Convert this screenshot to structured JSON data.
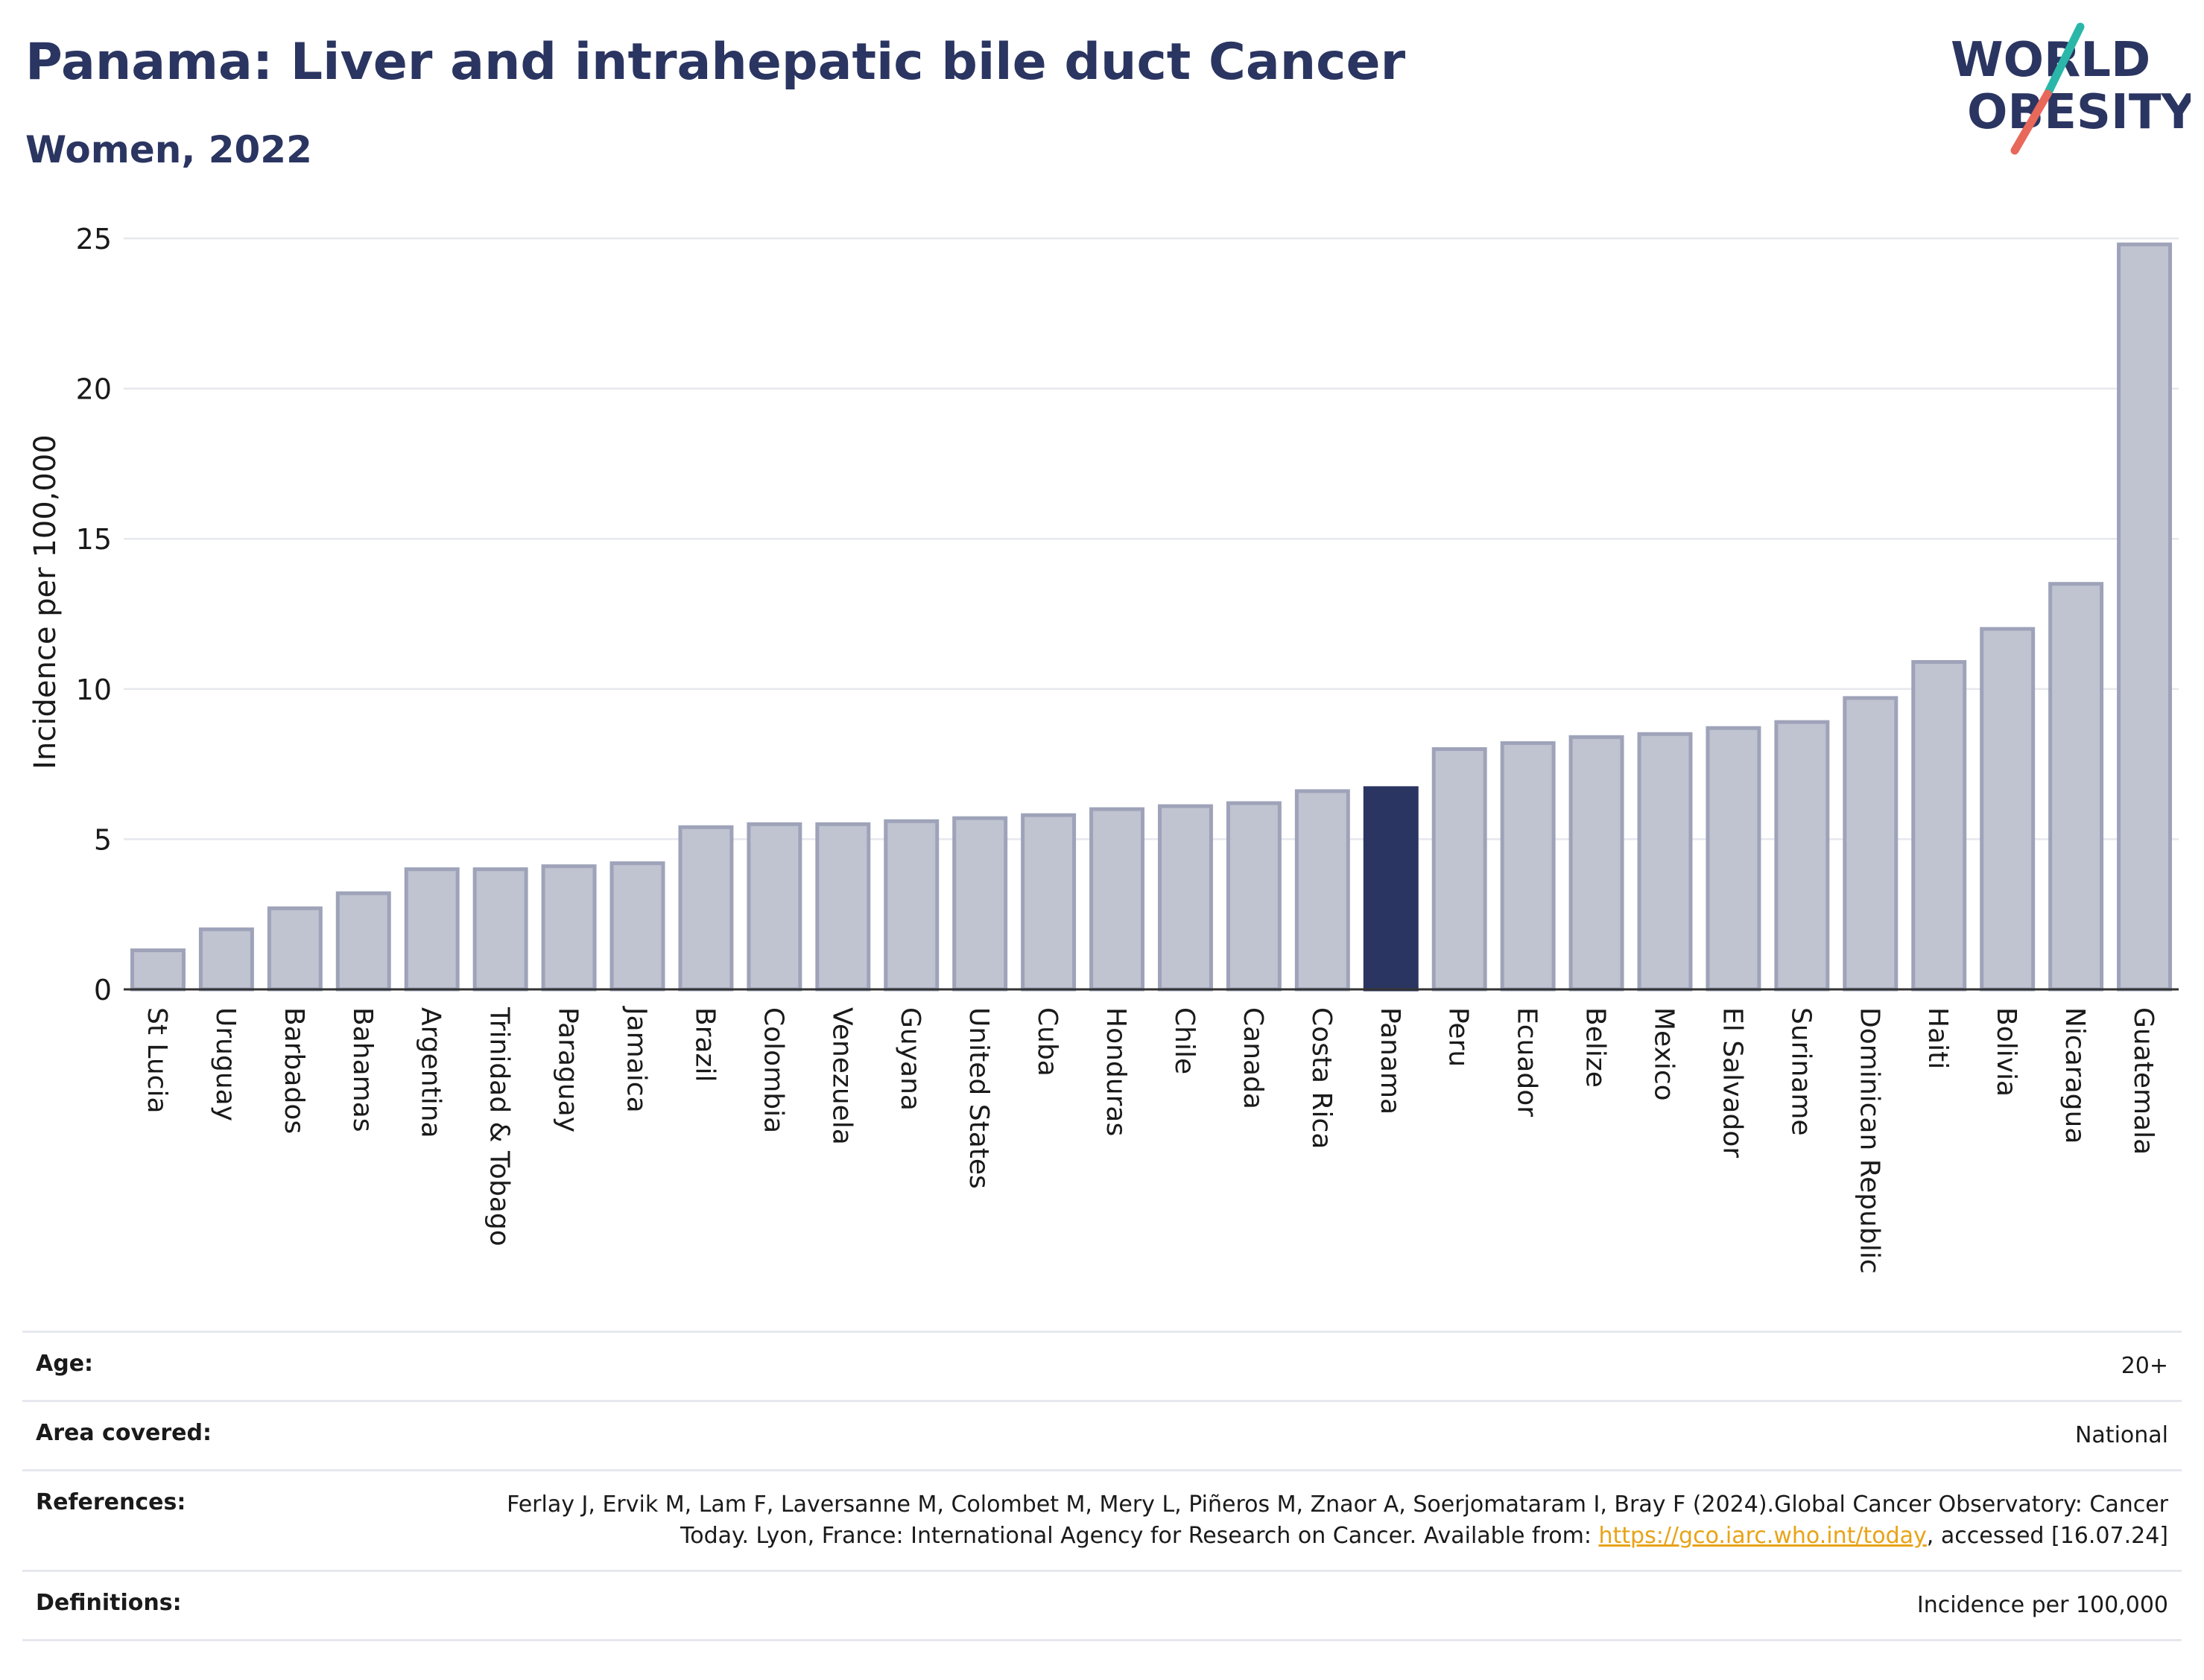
{
  "header": {
    "title": "Panama: Liver and intrahepatic bile duct Cancer",
    "subtitle": "Women, 2022"
  },
  "logo": {
    "line1": "WORLD",
    "line2": "OBESITY",
    "colors": {
      "text": "#2b3561",
      "slash_top": "#2ab7a9",
      "slash_bottom": "#e8685a"
    }
  },
  "colors": {
    "bar": "#c0c3d0",
    "bar_border": "#9ea3b9",
    "highlight": "#2b3561",
    "grid": "#e6e8ee",
    "axis": "#333333"
  },
  "chart_data": {
    "type": "bar",
    "title": "Panama: Liver and intrahepatic bile duct Cancer",
    "subtitle": "Women, 2022",
    "xlabel": "",
    "ylabel": "Incidence per 100,000",
    "ylim": [
      0,
      25
    ],
    "yticks": [
      0,
      5,
      10,
      15,
      20,
      25
    ],
    "grid": true,
    "highlight_category": "Panama",
    "categories": [
      "St Lucia",
      "Uruguay",
      "Barbados",
      "Bahamas",
      "Argentina",
      "Trinidad & Tobago",
      "Paraguay",
      "Jamaica",
      "Brazil",
      "Colombia",
      "Venezuela",
      "Guyana",
      "United States",
      "Cuba",
      "Honduras",
      "Chile",
      "Canada",
      "Costa Rica",
      "Panama",
      "Peru",
      "Ecuador",
      "Belize",
      "Mexico",
      "El Salvador",
      "Suriname",
      "Dominican Republic",
      "Haiti",
      "Bolivia",
      "Nicaragua",
      "Guatemala"
    ],
    "values": [
      1.3,
      2.0,
      2.7,
      3.2,
      4.0,
      4.0,
      4.1,
      4.2,
      5.4,
      5.5,
      5.5,
      5.6,
      5.7,
      5.8,
      6.0,
      6.1,
      6.2,
      6.6,
      6.7,
      8.0,
      8.2,
      8.4,
      8.5,
      8.7,
      8.9,
      9.7,
      10.9,
      12.0,
      13.5,
      24.8
    ]
  },
  "info": {
    "age": {
      "label": "Age:",
      "value": "20+"
    },
    "area": {
      "label": "Area covered:",
      "value": "National"
    },
    "references": {
      "label": "References:",
      "text_before": "Ferlay J, Ervik M, Lam F, Laversanne M, Colombet M, Mery L, Piñeros M, Znaor A, Soerjomataram I, Bray F (2024).Global Cancer Observatory: Cancer Today. Lyon, France: International Agency for Research on Cancer. Available from: ",
      "link": "https://gco.iarc.who.int/today",
      "text_after": ", accessed [16.07.24]"
    },
    "definitions": {
      "label": "Definitions:",
      "value": "Incidence per 100,000"
    }
  }
}
